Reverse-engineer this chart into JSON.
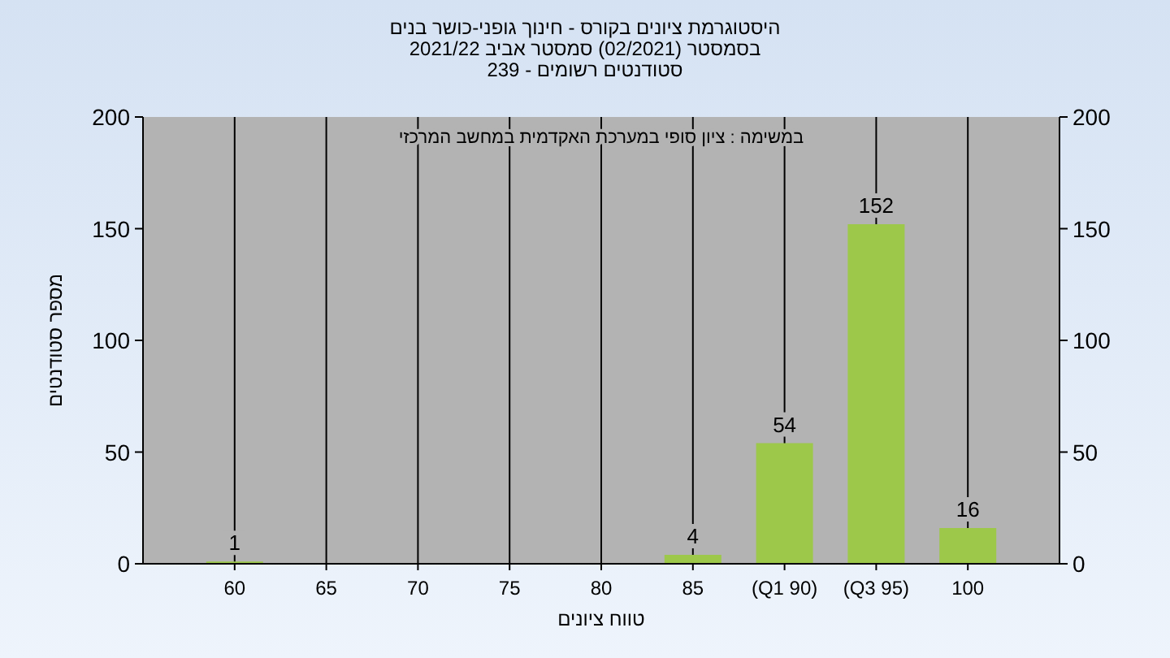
{
  "chart_data": {
    "type": "bar",
    "title": "היסטוגרמת ציונים בקורס - חינוך גופני-כושר בנים",
    "subtitle": "בסמסטר  (02/2021)  סמסטר אביב 2021/22\nסטודנטים רשומים - 239",
    "xlabel": "טווח ציונים",
    "ylabel": "מספר סטודנטים",
    "annotations": [
      "במשימה : ציון סופי במערכת האקדמית במחשב המרכזי"
    ],
    "categories": [
      "60",
      "65",
      "70",
      "75",
      "80",
      "85",
      "(Q1 90)",
      "(Q3 95)",
      "100"
    ],
    "values": [
      1,
      0,
      0,
      0,
      0,
      4,
      54,
      152,
      16
    ],
    "value_labels": [
      "1",
      null,
      null,
      null,
      null,
      "4",
      "54",
      "152",
      "16"
    ],
    "color": "#9dc84a",
    "ylim": [
      0,
      200
    ],
    "yticks": [
      0,
      50,
      100,
      150,
      200
    ],
    "y2lim": [
      0,
      200
    ],
    "y2ticks": [
      0,
      50,
      100,
      150,
      200
    ],
    "grid": "x"
  }
}
